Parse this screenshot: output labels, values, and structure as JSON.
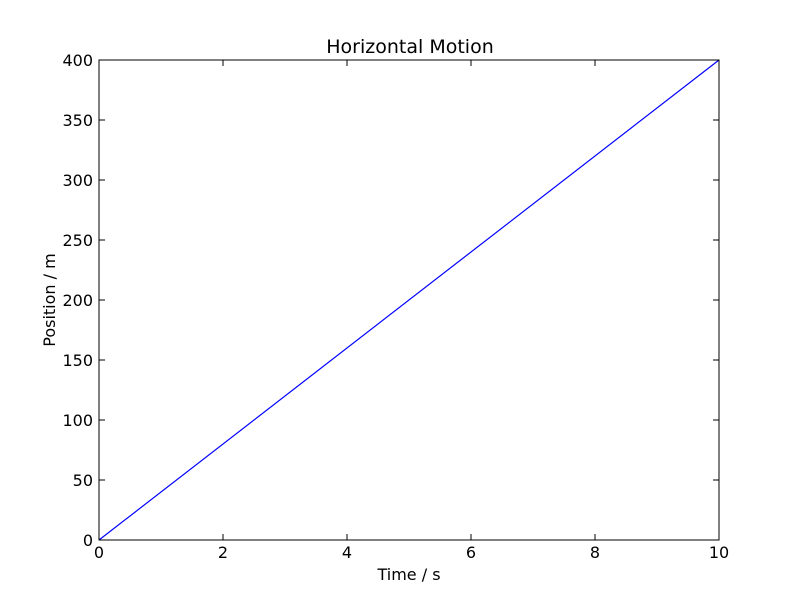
{
  "chart_data": {
    "type": "line",
    "title": "Horizontal Motion",
    "xlabel": "Time / s",
    "ylabel": "Position / m",
    "xlim": [
      0,
      10
    ],
    "ylim": [
      0,
      400
    ],
    "xticks": [
      0,
      2,
      4,
      6,
      8,
      10
    ],
    "yticks": [
      0,
      50,
      100,
      150,
      200,
      250,
      300,
      350,
      400
    ],
    "xtick_labels": [
      "0",
      "2",
      "4",
      "6",
      "8",
      "10"
    ],
    "ytick_labels": [
      "0",
      "50",
      "100",
      "150",
      "200",
      "250",
      "300",
      "350",
      "400"
    ],
    "grid": false,
    "legend": "none",
    "series": [
      {
        "color": "#0000ff",
        "x": [
          0,
          10
        ],
        "y": [
          0,
          400
        ]
      }
    ]
  }
}
